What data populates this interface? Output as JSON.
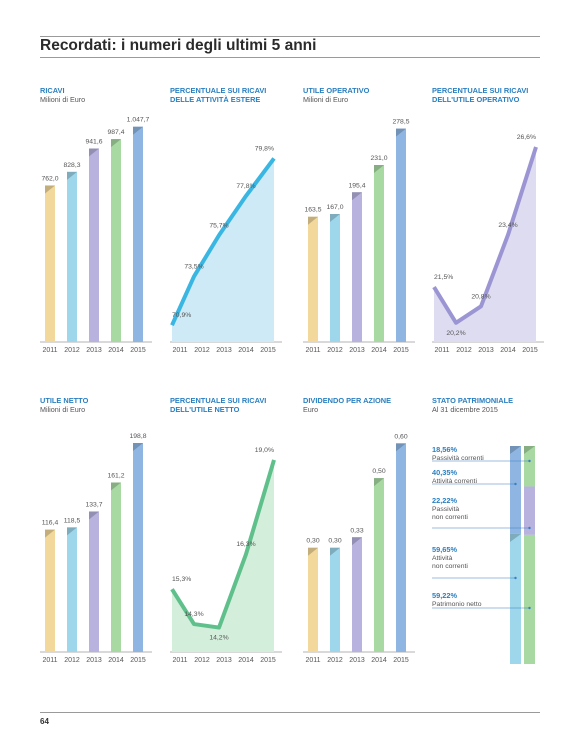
{
  "page": {
    "title": "Recordati: i numeri degli ultimi 5 anni",
    "page_number": "64"
  },
  "colors": {
    "title_blue": "#2a7fc0",
    "bar_2011": "#f2d89a",
    "bar_2012": "#9ed7ec",
    "bar_2013": "#b8b3de",
    "bar_2014": "#a8d9a2",
    "bar_2015": "#8fb6e3",
    "line_blue": "#3ab6e3",
    "fill_blue": "#cdeaf6",
    "line_purple": "#9c95d4",
    "fill_purple": "#dedcf1",
    "line_green": "#5fc08c",
    "fill_green": "#d3eedb"
  },
  "chart_data": [
    {
      "type": "bar",
      "title": "RICAVI",
      "subtitle": "Milioni di Euro",
      "categories": [
        "2011",
        "2012",
        "2013",
        "2014",
        "2015"
      ],
      "values": [
        762.0,
        828.3,
        941.6,
        987.4,
        1047.7
      ],
      "labels": [
        "762,0",
        "828,3",
        "941,6",
        "987,4",
        "1.047,7"
      ],
      "ylim": [
        0,
        1100
      ]
    },
    {
      "type": "area",
      "title": "PERCENTUALE SUI RICAVI DELLE ATTIVITÀ ESTERE",
      "subtitle": "",
      "categories": [
        "2011",
        "2012",
        "2013",
        "2014",
        "2015"
      ],
      "values": [
        70.9,
        73.5,
        75.7,
        77.8,
        79.8
      ],
      "labels": [
        "70,9%",
        "73,5%",
        "75,7%",
        "77,8%",
        "79,8%"
      ],
      "ylim": [
        70,
        81
      ]
    },
    {
      "type": "bar",
      "title": "UTILE OPERATIVO",
      "subtitle": "Milioni di Euro",
      "categories": [
        "2011",
        "2012",
        "2013",
        "2014",
        "2015"
      ],
      "values": [
        163.5,
        167.0,
        195.4,
        231.0,
        278.5
      ],
      "labels": [
        "163,5",
        "167,0",
        "195,4",
        "231,0",
        "278,5"
      ],
      "ylim": [
        0,
        295
      ]
    },
    {
      "type": "area",
      "title": "PERCENTUALE SUI RICAVI DELL'UTILE OPERATIVO",
      "subtitle": "",
      "categories": [
        "2011",
        "2012",
        "2013",
        "2014",
        "2015"
      ],
      "values": [
        21.5,
        20.2,
        20.8,
        23.4,
        26.6
      ],
      "labels": [
        "21,5%",
        "20,2%",
        "20,8%",
        "23,4%",
        "26,6%"
      ],
      "ylim": [
        19.5,
        27
      ]
    },
    {
      "type": "bar",
      "title": "UTILE NETTO",
      "subtitle": "Milioni di Euro",
      "categories": [
        "2011",
        "2012",
        "2013",
        "2014",
        "2015"
      ],
      "values": [
        116.4,
        118.5,
        133.7,
        161.2,
        198.8
      ],
      "labels": [
        "116,4",
        "118,5",
        "133,7",
        "161,2",
        "198,8"
      ],
      "ylim": [
        0,
        215
      ]
    },
    {
      "type": "area",
      "title": "PERCENTUALE SUI RICAVI DELL'UTILE NETTO",
      "subtitle": "",
      "categories": [
        "2011",
        "2012",
        "2013",
        "2014",
        "2015"
      ],
      "values": [
        15.3,
        14.3,
        14.2,
        16.3,
        19.0
      ],
      "labels": [
        "15,3%",
        "14,3%",
        "14,2%",
        "16,3%",
        "19,0%"
      ],
      "ylim": [
        13.5,
        19.4
      ]
    },
    {
      "type": "bar",
      "title": "DIVIDENDO PER AZIONE",
      "subtitle": "Euro",
      "categories": [
        "2011",
        "2012",
        "2013",
        "2014",
        "2015"
      ],
      "values": [
        0.3,
        0.3,
        0.33,
        0.5,
        0.6
      ],
      "labels": [
        "0,30",
        "0,30",
        "0,33",
        "0,50",
        "0,60"
      ],
      "ylim": [
        0,
        0.65
      ]
    },
    {
      "type": "bar",
      "title": "STATO PATRIMONIALE",
      "subtitle": "Al 31 dicembre 2015",
      "series": [
        {
          "name": "Passività correnti",
          "percent": "18,56%",
          "value": 18.56
        },
        {
          "name": "Attività correnti",
          "percent": "40,35%",
          "value": 40.35
        },
        {
          "name": "Passività non correnti",
          "percent": "22,22%",
          "value": 22.22
        },
        {
          "name": "Attività non correnti",
          "percent": "59,65%",
          "value": 59.65
        },
        {
          "name": "Patrimonio netto",
          "percent": "59,22%",
          "value": 59.22
        }
      ],
      "labels_display": [
        {
          "percent": "18,56%",
          "lines": [
            "Passività correnti"
          ]
        },
        {
          "percent": "40,35%",
          "lines": [
            "Attività correnti"
          ]
        },
        {
          "percent": "22,22%",
          "lines": [
            "Passività",
            "non correnti"
          ]
        },
        {
          "percent": "59,65%",
          "lines": [
            "Attività",
            "non correnti"
          ]
        },
        {
          "percent": "59,22%",
          "lines": [
            "Patrimonio netto"
          ]
        }
      ]
    }
  ]
}
